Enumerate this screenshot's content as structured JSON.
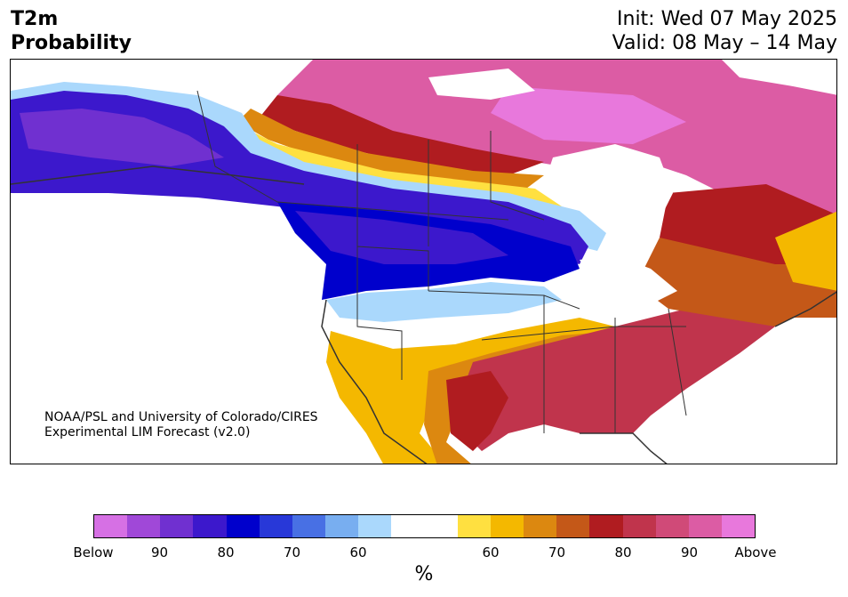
{
  "header": {
    "title_line1": "T2m",
    "title_line2": "Probability",
    "init": "Init: Wed 07 May 2025",
    "valid": "Valid: 08 May – 14 May"
  },
  "credit": {
    "line1": "NOAA/PSL and University of Colorado/CIRES",
    "line2": "Experimental LIM Forecast (v2.0)"
  },
  "colorbar": {
    "unit": "%",
    "colors": [
      "#d670e4",
      "#a048d8",
      "#7030d0",
      "#3c18cc",
      "#0000cc",
      "#2838d8",
      "#4870e4",
      "#78aef0",
      "#aad8fc",
      "#ffffff",
      "#ffffff",
      "#ffe040",
      "#f4b800",
      "#dc8810",
      "#c45818",
      "#b01c20",
      "#c0344c",
      "#d04a78",
      "#dc5ca4",
      "#e878dc"
    ],
    "tick_labels": [
      "Below",
      "90",
      "80",
      "70",
      "60",
      "60",
      "70",
      "80",
      "90",
      "Above"
    ]
  },
  "map": {
    "colors": {
      "strong_below": "#3c18cc",
      "below": "#0000cc",
      "light_below": "#78aef0",
      "neutral": "#ffffff",
      "light_above": "#ffe040",
      "above": "#dc8810",
      "strong_above": "#c0344c",
      "extreme_above": "#dc5ca4"
    }
  }
}
